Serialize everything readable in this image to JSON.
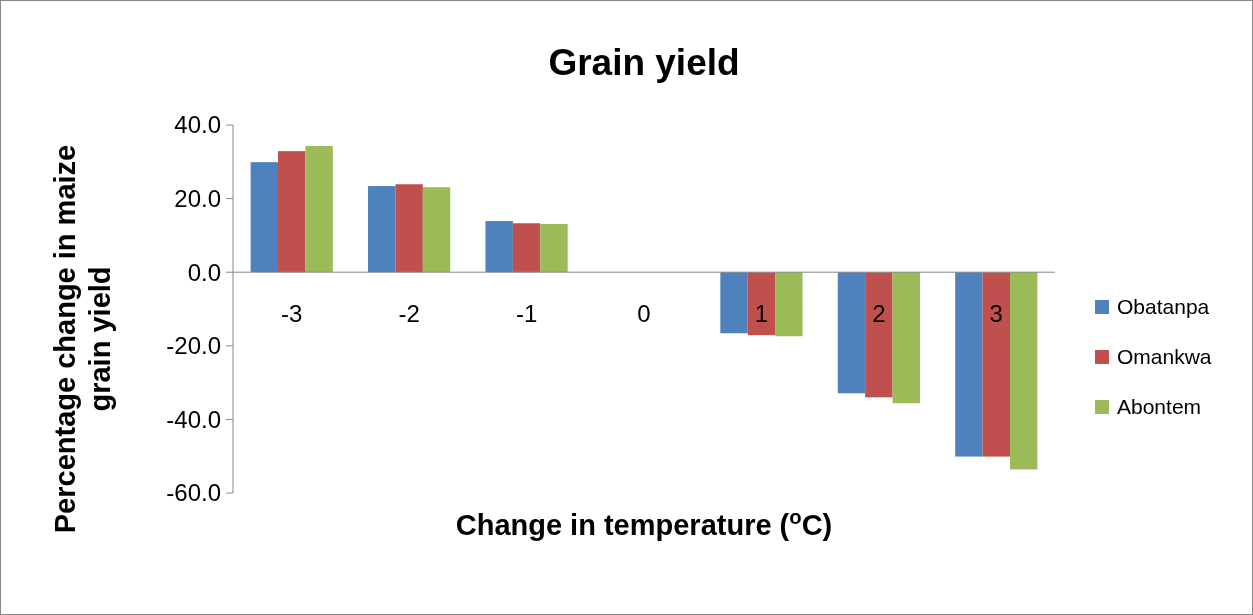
{
  "chart_data": {
    "type": "bar",
    "title": "Grain yield",
    "xlabel": "Change in temperature  ($^{o}$C)",
    "ylabel": "Percentage change in maize grain yield",
    "categories": [
      "-3",
      "-2",
      "-1",
      "0",
      "1",
      "2",
      "3"
    ],
    "series": [
      {
        "name": "Obatanpa",
        "color": "#4f81bd",
        "values": [
          29.9,
          23.4,
          13.9,
          0,
          -16.6,
          -32.9,
          -50.1
        ]
      },
      {
        "name": "Omankwa",
        "color": "#c0504d",
        "values": [
          32.9,
          23.9,
          13.3,
          0,
          -17.1,
          -34.0,
          -50.1
        ]
      },
      {
        "name": "Abontem",
        "color": "#9bbb59",
        "values": [
          34.3,
          23.1,
          13.1,
          0,
          -17.4,
          -35.6,
          -53.6
        ]
      }
    ],
    "ylim": [
      -60,
      40
    ],
    "yticks": [
      {
        "value": -60,
        "label": "-60.0"
      },
      {
        "value": -40,
        "label": "-40.0"
      },
      {
        "value": -20,
        "label": "-20.0"
      },
      {
        "value": 0,
        "label": "0.0"
      },
      {
        "value": 20,
        "label": "20.0"
      },
      {
        "value": 40,
        "label": "40.0"
      }
    ],
    "grid": false,
    "legend": "right"
  }
}
